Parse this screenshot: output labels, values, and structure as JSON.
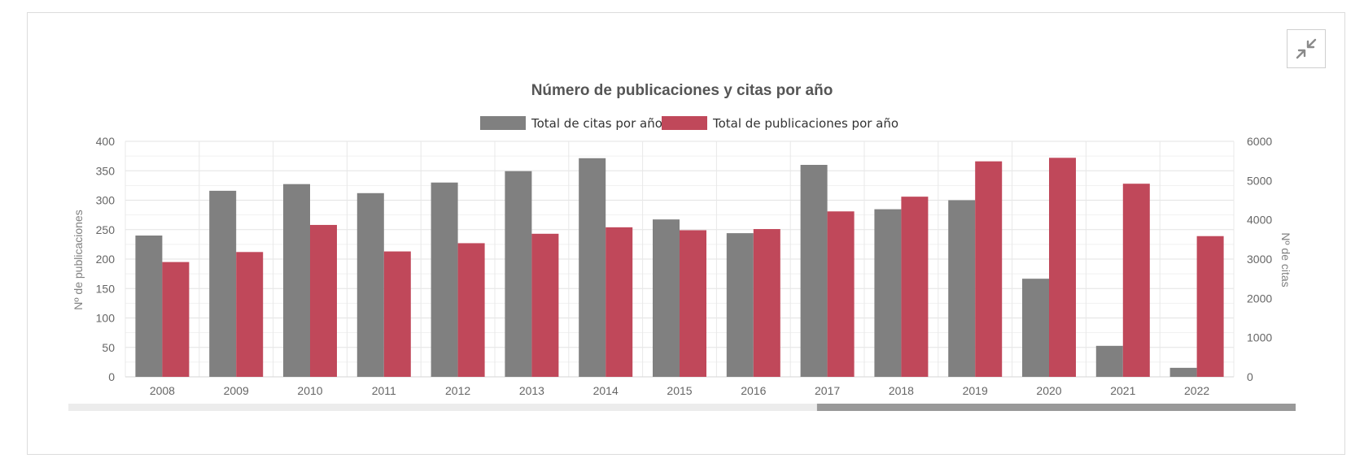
{
  "controls": {
    "collapse_icon": "collapse-arrows-icon"
  },
  "chart_data": {
    "type": "bar",
    "title": "Número de publicaciones y citas por año",
    "categories": [
      "2008",
      "2009",
      "2010",
      "2011",
      "2012",
      "2013",
      "2014",
      "2015",
      "2016",
      "2017",
      "2018",
      "2019",
      "2020",
      "2021",
      "2022"
    ],
    "series": [
      {
        "name": "Total de citas por año",
        "axis": "right",
        "color": "#808080",
        "values": [
          3600,
          4740,
          4910,
          4680,
          4950,
          5240,
          5570,
          4010,
          3660,
          5400,
          4270,
          4500,
          2500,
          790,
          230
        ]
      },
      {
        "name": "Total de publicaciones por año",
        "axis": "left",
        "color": "#c0485a",
        "values": [
          195,
          212,
          258,
          213,
          227,
          243,
          254,
          249,
          251,
          281,
          306,
          366,
          372,
          328,
          239
        ]
      }
    ],
    "ylabel": "Nº de publicaciones",
    "ylabel_right": "Nº de citas",
    "ylim": [
      0,
      400
    ],
    "ylim_right": [
      0,
      6000
    ],
    "yticks": [
      "0",
      "50",
      "100",
      "150",
      "200",
      "250",
      "300",
      "350",
      "400"
    ],
    "yticks_right": [
      "0",
      "1000",
      "2000",
      "3000",
      "4000",
      "5000",
      "6000"
    ],
    "legend_position": "top-center",
    "grid": true,
    "scrollbar": {
      "position": 0.61,
      "visible_fraction": 0.39
    }
  }
}
